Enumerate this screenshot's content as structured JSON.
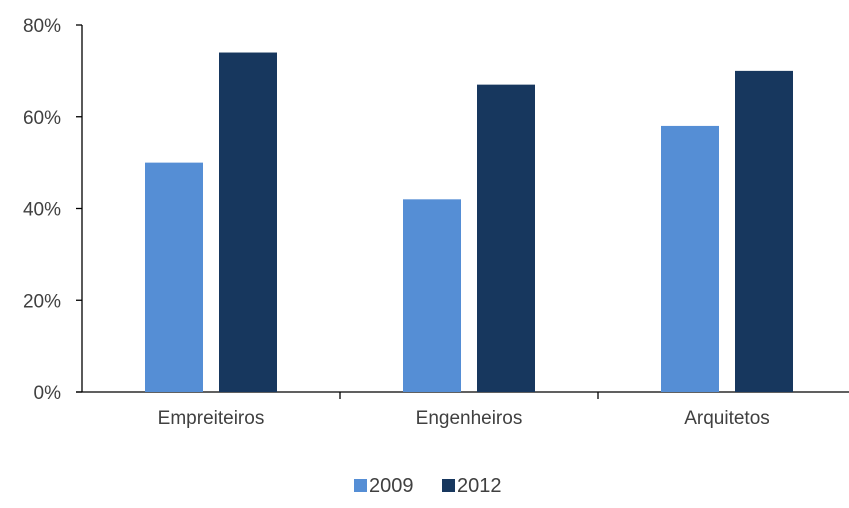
{
  "chart_data": {
    "type": "bar",
    "categories": [
      "Empreiteiros",
      "Engenheiros",
      "Arquitetos"
    ],
    "series": [
      {
        "name": "2009",
        "values": [
          50,
          42,
          58
        ],
        "color": "#558ed5"
      },
      {
        "name": "2012",
        "values": [
          74,
          67,
          70
        ],
        "color": "#17375e"
      }
    ],
    "title": "",
    "xlabel": "",
    "ylabel": "",
    "ylim": [
      0,
      80
    ],
    "yticks": [
      0,
      20,
      40,
      60,
      80
    ],
    "ytick_labels": [
      "0%",
      "20%",
      "40%",
      "60%",
      "80%"
    ],
    "grid": false,
    "legend_position": "bottom"
  }
}
